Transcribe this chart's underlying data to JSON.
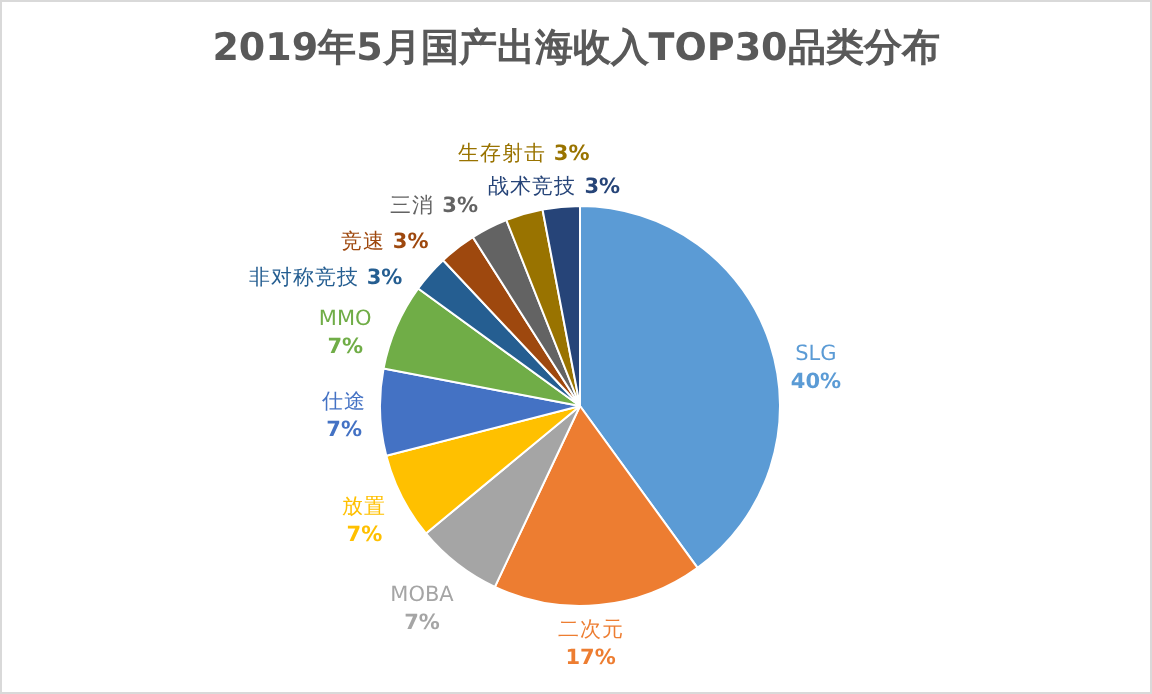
{
  "chart_data": {
    "type": "pie",
    "title": "2019年5月国产出海收入TOP30品类分布",
    "categories": [
      "SLG",
      "二次元",
      "MOBA",
      "放置",
      "仕途",
      "MMO",
      "非对称竞技",
      "竞速",
      "三消",
      "生存射击",
      "战术竞技"
    ],
    "values": [
      40,
      17,
      7,
      7,
      7,
      7,
      3,
      3,
      3,
      3,
      3
    ],
    "value_labels": [
      "40%",
      "17%",
      "7%",
      "7%",
      "7%",
      "7%",
      "3%",
      "3%",
      "3%",
      "3%",
      "3%"
    ],
    "colors": [
      "#5b9bd5",
      "#ed7d31",
      "#a5a5a5",
      "#ffc000",
      "#4472c4",
      "#70ad47",
      "#255e91",
      "#9e480e",
      "#636363",
      "#997300",
      "#264478"
    ]
  }
}
